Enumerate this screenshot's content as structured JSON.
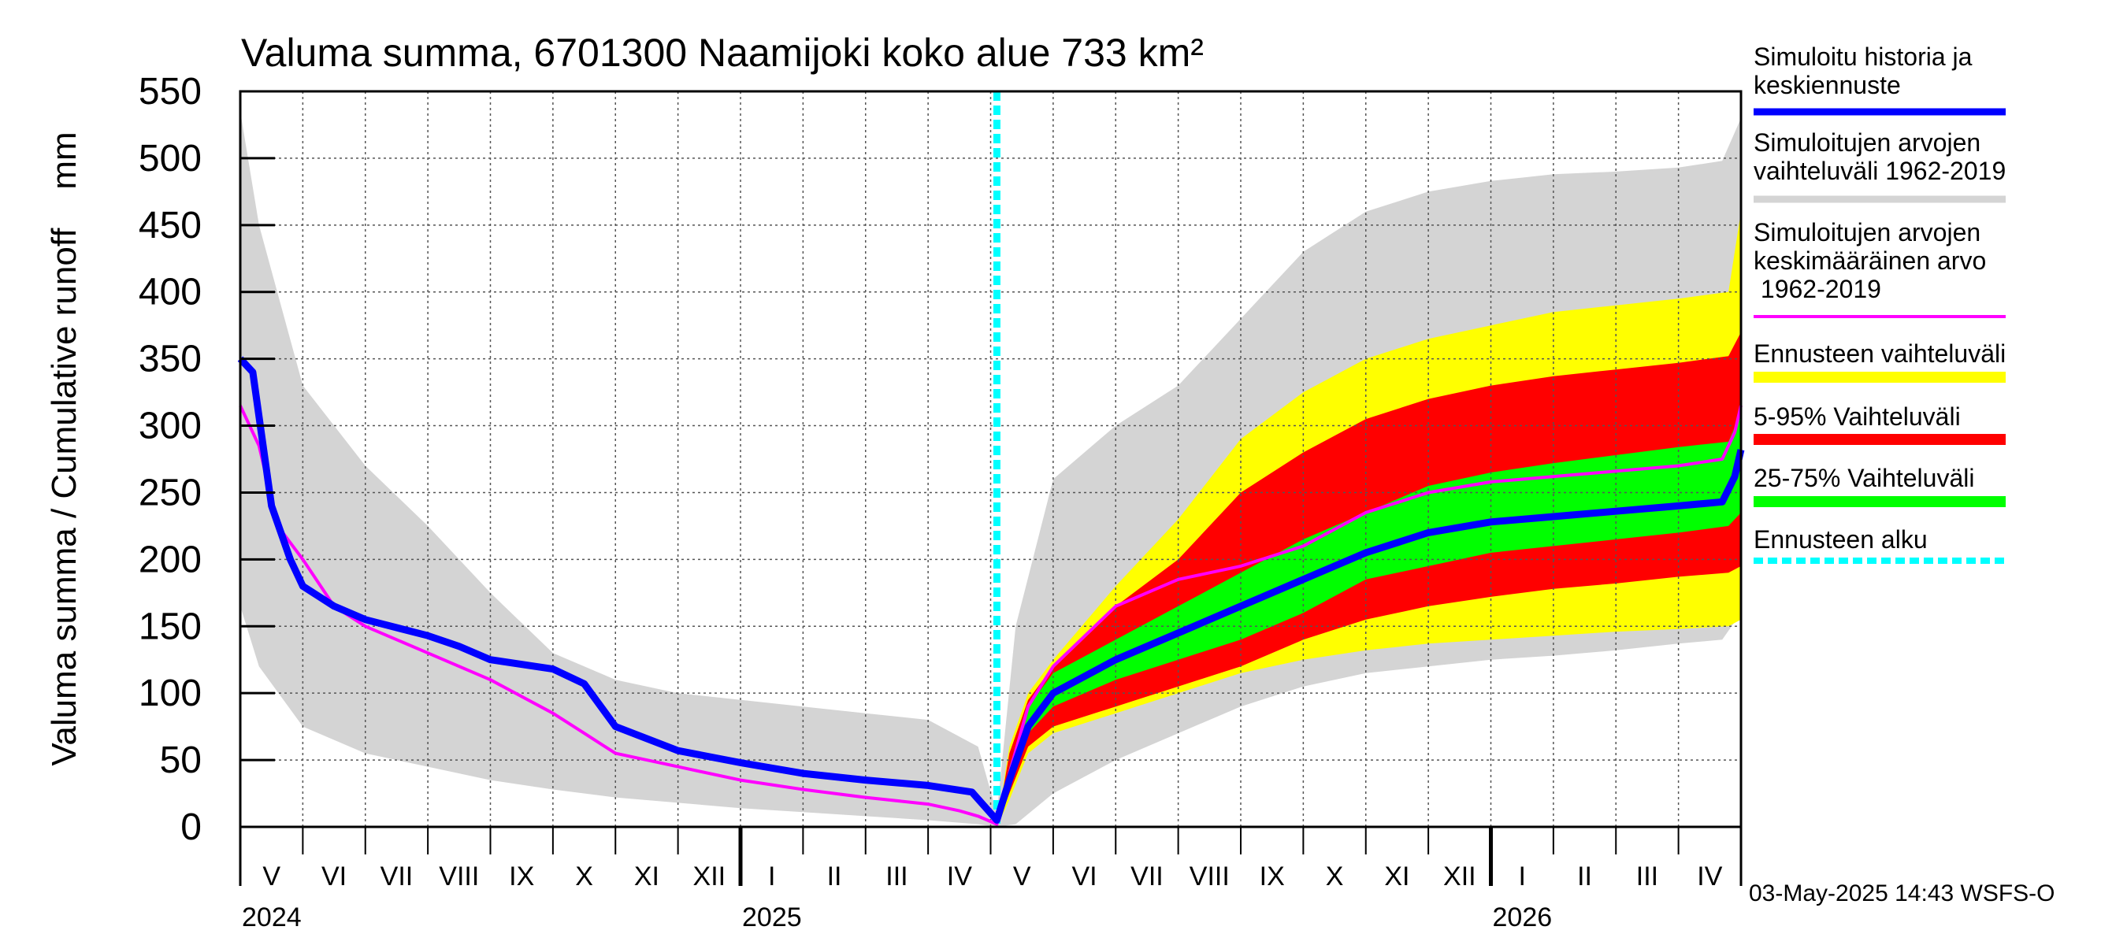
{
  "chart_data": {
    "type": "area",
    "title": "Valuma summa, 6701300 Naamijoki koko alue 733 km²",
    "ylabel": "Valuma summa / Cumulative runoff    mm",
    "ylim": [
      0,
      550
    ],
    "yticks": [
      0,
      50,
      100,
      150,
      200,
      250,
      300,
      350,
      400,
      450,
      500,
      550
    ],
    "x_unit": "months since 2024-05-01",
    "xlim": [
      0,
      24
    ],
    "forecast_start": 12.1,
    "month_labels": [
      "V",
      "VI",
      "VII",
      "VIII",
      "IX",
      "X",
      "XI",
      "XII",
      "I",
      "II",
      "III",
      "IV",
      "V",
      "VI",
      "VII",
      "VIII",
      "IX",
      "X",
      "XI",
      "XII",
      "I",
      "II",
      "III",
      "IV"
    ],
    "year_labels": [
      {
        "label": "2024",
        "at": 0
      },
      {
        "label": "2025",
        "at": 8
      },
      {
        "label": "2026",
        "at": 20
      }
    ],
    "timestamp": "03-May-2025 14:43 WSFS-O",
    "legend": [
      {
        "label": "Simuloitu historia ja keskiennuste",
        "color": "#0000ff",
        "style": "line"
      },
      {
        "label": "Simuloitujen arvojen vaihteluväli 1962-2019",
        "color": "#d4d4d4",
        "style": "line"
      },
      {
        "label": "Simuloitujen arvojen keskimääräinen arvo    1962-2019",
        "color": "#ff00ff",
        "style": "line"
      },
      {
        "label": "Ennusteen vaihteluväli",
        "color": "#ffff00",
        "style": "line"
      },
      {
        "label": "5-95% Vaihteluväli",
        "color": "#ff0000",
        "style": "line"
      },
      {
        "label": "25-75% Vaihteluväli",
        "color": "#00ff00",
        "style": "line"
      },
      {
        "label": "Ennusteen alku",
        "color": "#00ffff",
        "style": "dashed"
      }
    ],
    "series": [
      {
        "name": "historical_range",
        "type": "band",
        "color": "#d4d4d4",
        "x": [
          0,
          0.3,
          1,
          2,
          3,
          4,
          5,
          6,
          7,
          8,
          9,
          10,
          11,
          11.8,
          12.1,
          12.4,
          13,
          14,
          15,
          16,
          17,
          18,
          19,
          20,
          21,
          22,
          23,
          23.7,
          24
        ],
        "lo": [
          165,
          120,
          75,
          55,
          45,
          35,
          28,
          22,
          18,
          14,
          11,
          8,
          5,
          2,
          0,
          2,
          25,
          50,
          70,
          90,
          105,
          115,
          120,
          125,
          128,
          132,
          137,
          140,
          160
        ],
        "hi": [
          535,
          450,
          330,
          270,
          225,
          175,
          130,
          110,
          100,
          95,
          90,
          85,
          80,
          60,
          10,
          150,
          260,
          300,
          330,
          380,
          430,
          460,
          475,
          483,
          488,
          490,
          493,
          498,
          530
        ]
      },
      {
        "name": "forecast_range",
        "type": "band",
        "color": "#ffff00",
        "x": [
          12.1,
          12.3,
          12.6,
          13,
          14,
          15,
          16,
          17,
          18,
          19,
          20,
          21,
          22,
          23,
          23.8,
          24
        ],
        "lo": [
          0,
          20,
          55,
          70,
          85,
          100,
          115,
          125,
          132,
          137,
          140,
          143,
          146,
          148,
          150,
          155
        ],
        "hi": [
          0,
          60,
          100,
          125,
          180,
          230,
          290,
          325,
          350,
          365,
          375,
          385,
          390,
          395,
          400,
          460
        ]
      },
      {
        "name": "p5_95",
        "type": "band",
        "color": "#ff0000",
        "x": [
          12.1,
          12.3,
          12.6,
          13,
          14,
          15,
          16,
          17,
          18,
          19,
          20,
          21,
          22,
          23,
          23.8,
          24
        ],
        "lo": [
          0,
          25,
          60,
          75,
          90,
          105,
          120,
          140,
          155,
          165,
          172,
          178,
          182,
          187,
          190,
          195
        ],
        "hi": [
          0,
          55,
          95,
          120,
          165,
          200,
          250,
          280,
          305,
          320,
          330,
          337,
          342,
          347,
          352,
          370
        ]
      },
      {
        "name": "p25_75",
        "type": "band",
        "color": "#00ff00",
        "x": [
          12.1,
          12.3,
          12.6,
          13,
          14,
          15,
          16,
          17,
          18,
          19,
          20,
          21,
          22,
          23,
          23.8,
          24
        ],
        "lo": [
          0,
          35,
          70,
          90,
          110,
          125,
          140,
          160,
          185,
          195,
          205,
          210,
          215,
          220,
          225,
          235
        ],
        "hi": [
          0,
          45,
          90,
          115,
          140,
          165,
          190,
          215,
          235,
          255,
          265,
          272,
          278,
          284,
          288,
          310
        ]
      },
      {
        "name": "Simuloitujen arvojen keskimääräinen arvo",
        "type": "line",
        "color": "#ff00ff",
        "x": [
          0,
          0.3,
          0.6,
          1,
          1.5,
          2,
          3,
          3.5,
          4,
          5,
          5.5,
          6,
          7,
          8,
          9,
          10,
          11,
          11.5,
          11.8,
          12.1,
          12.3,
          12.6,
          13,
          14,
          15,
          16,
          17,
          18,
          19,
          20,
          21,
          22,
          23,
          23.7,
          23.9,
          24
        ],
        "y": [
          315,
          285,
          225,
          200,
          165,
          150,
          130,
          120,
          110,
          85,
          70,
          55,
          45,
          35,
          28,
          22,
          17,
          12,
          8,
          2,
          40,
          90,
          120,
          165,
          185,
          195,
          210,
          235,
          250,
          258,
          262,
          266,
          270,
          275,
          295,
          315
        ]
      },
      {
        "name": "Simuloitu historia ja keskiennuste",
        "type": "line",
        "color": "#0000ff",
        "x": [
          0,
          0.2,
          0.5,
          0.8,
          1,
          1.5,
          2,
          3,
          3.5,
          4,
          5,
          5.5,
          6,
          7,
          8,
          9,
          10,
          11,
          11.7,
          12.1,
          12.3,
          12.6,
          13,
          14,
          15,
          16,
          17,
          18,
          19,
          20,
          21,
          22,
          23,
          23.7,
          23.9,
          24
        ],
        "y": [
          350,
          340,
          240,
          200,
          180,
          165,
          155,
          143,
          135,
          125,
          118,
          107,
          75,
          57,
          48,
          40,
          35,
          31,
          26,
          5,
          35,
          75,
          100,
          125,
          145,
          165,
          185,
          205,
          220,
          228,
          232,
          236,
          240,
          243,
          262,
          282
        ]
      }
    ]
  }
}
